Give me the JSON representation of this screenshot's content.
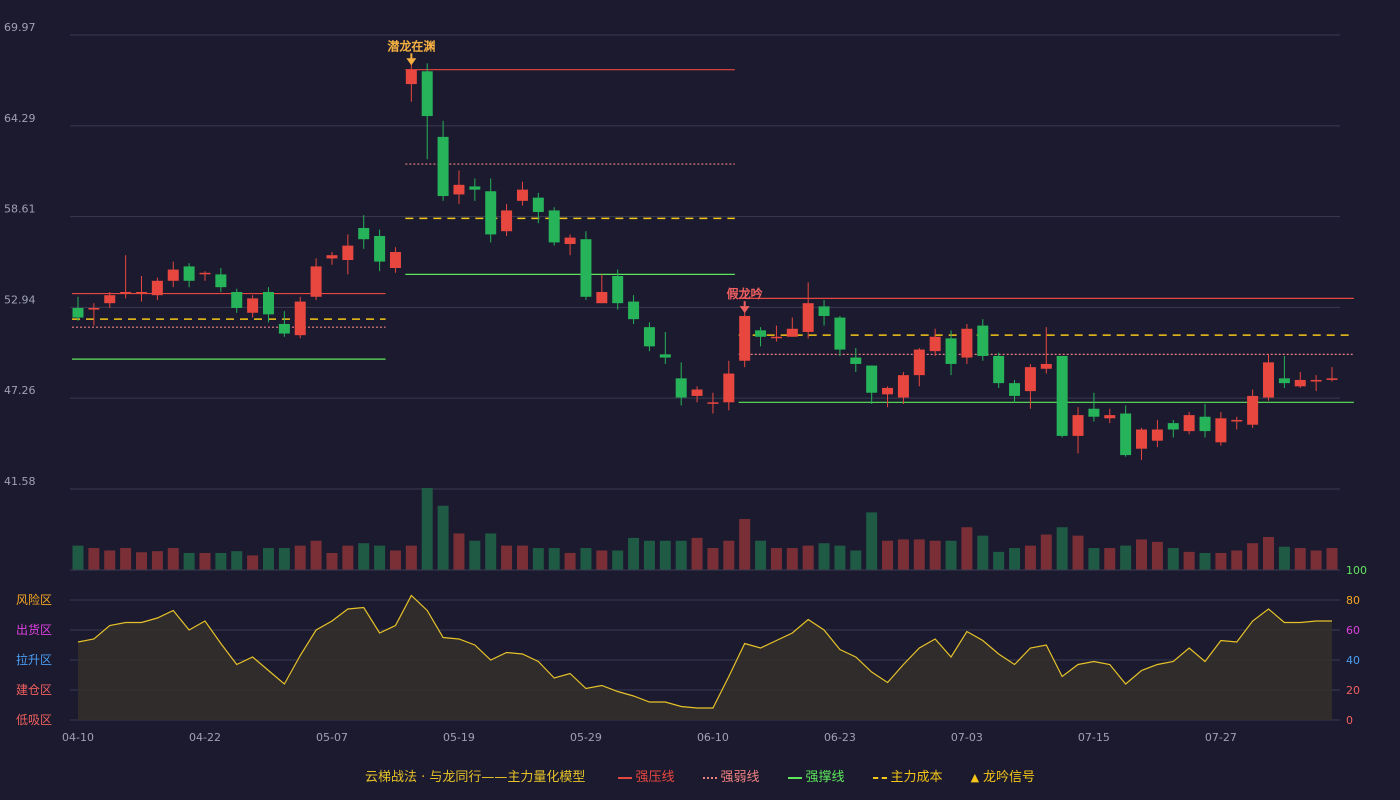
{
  "colors": {
    "background": "#1b1a2e",
    "grid": "#3a3a52",
    "up": "#e8473f",
    "down": "#26b35a",
    "vol_up": "#7a2f36",
    "vol_down": "#1f5a45",
    "resist": "#e8473f",
    "weak": "#f08080",
    "support": "#5ce65c",
    "cost": "#f5c518",
    "signal_up": "#f5b041",
    "signal_down": "#f06060",
    "osc_line": "#e6c229",
    "osc_fill": "#332f2c"
  },
  "chart_data": [
    {
      "type": "candlestick",
      "y_ticks": [
        "69.97",
        "64.29",
        "58.61",
        "52.94",
        "47.26",
        "41.58"
      ],
      "ylim": [
        41.58,
        69.97
      ],
      "x_tick_labels": [
        {
          "i": 0,
          "label": "04-10"
        },
        {
          "i": 8,
          "label": "04-22"
        },
        {
          "i": 16,
          "label": "05-07"
        },
        {
          "i": 24,
          "label": "05-19"
        },
        {
          "i": 32,
          "label": "05-29"
        },
        {
          "i": 40,
          "label": "06-10"
        },
        {
          "i": 48,
          "label": "06-23"
        },
        {
          "i": 56,
          "label": "07-03"
        },
        {
          "i": 64,
          "label": "07-15"
        },
        {
          "i": 72,
          "label": "07-27"
        }
      ],
      "candles": [
        [
          52.9,
          52.3,
          53.6,
          52.1
        ],
        [
          52.8,
          52.9,
          53.2,
          51.8
        ],
        [
          53.2,
          53.7,
          53.9,
          52.9
        ],
        [
          53.8,
          53.9,
          56.2,
          53.5
        ],
        [
          53.9,
          53.9,
          54.9,
          53.3
        ],
        [
          53.7,
          54.6,
          54.8,
          53.4
        ],
        [
          54.6,
          55.3,
          55.8,
          54.2
        ],
        [
          55.5,
          54.6,
          55.7,
          54.2
        ],
        [
          55.1,
          55.1,
          55.2,
          54.6
        ],
        [
          55.0,
          54.2,
          55.4,
          53.9
        ],
        [
          53.9,
          52.9,
          54.1,
          52.6
        ],
        [
          52.6,
          53.5,
          53.7,
          52.3
        ],
        [
          53.9,
          52.5,
          54.2,
          52.0
        ],
        [
          51.9,
          51.3,
          52.7,
          51.1
        ],
        [
          51.2,
          53.3,
          53.6,
          51.0
        ],
        [
          53.6,
          55.5,
          56.0,
          53.4
        ],
        [
          56.0,
          56.2,
          56.4,
          55.6
        ],
        [
          55.9,
          56.8,
          57.5,
          55.0
        ],
        [
          57.9,
          57.2,
          58.7,
          56.6
        ],
        [
          57.4,
          55.8,
          57.8,
          55.2
        ],
        [
          55.4,
          56.4,
          56.7,
          55.1
        ],
        [
          66.9,
          67.8,
          68.2,
          65.8
        ],
        [
          67.7,
          64.9,
          68.2,
          62.2
        ],
        [
          63.6,
          59.9,
          64.6,
          59.6
        ],
        [
          60.0,
          60.6,
          61.5,
          59.4
        ],
        [
          60.5,
          60.3,
          61.0,
          59.6
        ],
        [
          60.2,
          57.5,
          61.0,
          57.0
        ],
        [
          57.7,
          59.0,
          59.4,
          57.4
        ],
        [
          59.6,
          60.3,
          60.8,
          59.3
        ],
        [
          59.8,
          58.9,
          60.1,
          58.2
        ],
        [
          59.0,
          57.0,
          59.2,
          56.8
        ],
        [
          56.9,
          57.3,
          57.5,
          56.2
        ],
        [
          57.2,
          53.6,
          57.7,
          53.4
        ],
        [
          53.2,
          53.9,
          55.0,
          53.2
        ],
        [
          54.9,
          53.2,
          55.3,
          52.8
        ],
        [
          53.3,
          52.2,
          53.7,
          51.9
        ],
        [
          51.7,
          50.5,
          52.0,
          50.2
        ],
        [
          50.0,
          49.8,
          51.4,
          49.4
        ],
        [
          48.5,
          47.3,
          49.5,
          46.8
        ],
        [
          47.4,
          47.8,
          48.0,
          47.0
        ],
        [
          47.0,
          47.0,
          47.6,
          46.3
        ],
        [
          47.0,
          48.8,
          49.6,
          46.5
        ],
        [
          49.6,
          52.4,
          52.7,
          49.2
        ],
        [
          51.5,
          51.1,
          51.7,
          50.5
        ],
        [
          51.1,
          51.1,
          51.8,
          50.8
        ],
        [
          51.1,
          51.6,
          52.3,
          51.1
        ],
        [
          51.4,
          53.2,
          54.5,
          51.0
        ],
        [
          53.0,
          52.4,
          53.4,
          51.8
        ],
        [
          52.3,
          50.3,
          52.4,
          49.9
        ],
        [
          49.8,
          49.4,
          50.4,
          48.9
        ],
        [
          49.3,
          47.6,
          49.3,
          46.9
        ],
        [
          47.5,
          47.9,
          48.0,
          46.7
        ],
        [
          47.3,
          48.7,
          48.9,
          46.9
        ],
        [
          48.7,
          50.3,
          50.4,
          48.0
        ],
        [
          50.2,
          51.1,
          51.6,
          49.9
        ],
        [
          51.0,
          49.4,
          51.5,
          48.7
        ],
        [
          49.8,
          51.6,
          51.9,
          49.4
        ],
        [
          51.8,
          49.9,
          52.2,
          49.6
        ],
        [
          49.9,
          48.2,
          50.1,
          47.9
        ],
        [
          48.2,
          47.4,
          48.4,
          47.0
        ],
        [
          47.7,
          49.2,
          49.4,
          46.6
        ],
        [
          49.1,
          49.4,
          51.7,
          48.8
        ],
        [
          49.9,
          44.9,
          49.9,
          44.8
        ],
        [
          44.9,
          46.2,
          46.7,
          43.8
        ],
        [
          46.6,
          46.1,
          47.6,
          45.8
        ],
        [
          46.0,
          46.2,
          46.6,
          45.7
        ],
        [
          46.3,
          43.7,
          46.8,
          43.6
        ],
        [
          44.1,
          45.3,
          45.4,
          43.4
        ],
        [
          44.6,
          45.3,
          45.9,
          44.2
        ],
        [
          45.7,
          45.3,
          45.9,
          44.8
        ],
        [
          45.2,
          46.2,
          46.4,
          45.0
        ],
        [
          46.1,
          45.2,
          46.9,
          44.8
        ],
        [
          44.5,
          46.0,
          46.4,
          44.3
        ],
        [
          45.8,
          45.9,
          46.1,
          45.3
        ],
        [
          45.6,
          47.4,
          47.8,
          45.4
        ],
        [
          47.3,
          49.5,
          50.0,
          47.1
        ],
        [
          48.5,
          48.2,
          49.9,
          47.9
        ],
        [
          48.0,
          48.4,
          48.9,
          47.9
        ],
        [
          48.3,
          48.4,
          48.7,
          47.7
        ],
        [
          48.4,
          48.5,
          49.2,
          48.3
        ]
      ],
      "volume": [
        1.1,
        0.99,
        0.88,
        0.99,
        0.8,
        0.85,
        0.99,
        0.77,
        0.77,
        0.77,
        0.85,
        0.66,
        0.99,
        0.99,
        1.1,
        1.32,
        0.77,
        1.1,
        1.21,
        1.1,
        0.88,
        1.1,
        3.7,
        2.9,
        1.65,
        1.32,
        1.65,
        1.1,
        1.1,
        0.99,
        0.99,
        0.77,
        0.99,
        0.88,
        0.88,
        1.45,
        1.32,
        1.32,
        1.32,
        1.45,
        0.99,
        1.32,
        2.3,
        1.32,
        0.99,
        0.99,
        1.1,
        1.21,
        1.1,
        0.88,
        2.6,
        1.32,
        1.38,
        1.38,
        1.32,
        1.32,
        1.93,
        1.55,
        0.82,
        0.99,
        1.1,
        1.6,
        1.93,
        1.55,
        0.99,
        0.99,
        1.1,
        1.38,
        1.27,
        0.99,
        0.82,
        0.77,
        0.77,
        0.88,
        1.21,
        1.49,
        1.05,
        0.99,
        0.88,
        0.99
      ],
      "levels": [
        {
          "kind": "resist",
          "from": 0,
          "to": 19,
          "value": 53.8
        },
        {
          "kind": "weak",
          "from": 0,
          "to": 19,
          "value": 51.7
        },
        {
          "kind": "cost",
          "from": 0,
          "to": 19,
          "value": 52.2
        },
        {
          "kind": "support",
          "from": 0,
          "to": 19,
          "value": 49.7
        },
        {
          "kind": "resist",
          "from": 21,
          "to": 41,
          "value": 67.8
        },
        {
          "kind": "weak",
          "from": 21,
          "to": 41,
          "value": 61.9
        },
        {
          "kind": "cost",
          "from": 21,
          "to": 41,
          "value": 58.5
        },
        {
          "kind": "support",
          "from": 21,
          "to": 41,
          "value": 55.0
        },
        {
          "kind": "resist",
          "from": 42,
          "to": 80,
          "value": 53.5
        },
        {
          "kind": "weak",
          "from": 42,
          "to": 80,
          "value": 50.0
        },
        {
          "kind": "cost",
          "from": 42,
          "to": 80,
          "value": 51.2
        },
        {
          "kind": "support",
          "from": 42,
          "to": 80,
          "value": 47.0
        }
      ],
      "signals": [
        {
          "i": 21,
          "text": "潜龙在渊",
          "kind": "up"
        },
        {
          "i": 42,
          "text": "假龙吟",
          "kind": "down"
        }
      ]
    },
    {
      "type": "area",
      "ylim": [
        0,
        100
      ],
      "y_ticks": [
        {
          "v": 100,
          "label": "100",
          "color": "#5ce65c"
        },
        {
          "v": 80,
          "label": "80",
          "color": "#f5a623"
        },
        {
          "v": 60,
          "label": "60",
          "color": "#e040e0"
        },
        {
          "v": 40,
          "label": "40",
          "color": "#4a9ff5"
        },
        {
          "v": 20,
          "label": "20",
          "color": "#f06060"
        },
        {
          "v": 0,
          "label": "0",
          "color": "#f06060"
        }
      ],
      "zones": [
        {
          "v": 80,
          "text": "风险区",
          "color": "#f5a623"
        },
        {
          "v": 60,
          "text": "出货区",
          "color": "#e040e0"
        },
        {
          "v": 40,
          "text": "拉升区",
          "color": "#4a9ff5"
        },
        {
          "v": 20,
          "text": "建仓区",
          "color": "#f06060"
        },
        {
          "v": 0,
          "text": "低吸区",
          "color": "#f06060"
        }
      ],
      "values": [
        52,
        54,
        63,
        65,
        65,
        68,
        73,
        60,
        66,
        51,
        37,
        42,
        33,
        24,
        43,
        60,
        66,
        74,
        75,
        58,
        63,
        83,
        73,
        55,
        54,
        50,
        40,
        45,
        44,
        39,
        28,
        31,
        21,
        23,
        19,
        16,
        12,
        12,
        9,
        8,
        8,
        29,
        51,
        48,
        53,
        58,
        67,
        60,
        47,
        42,
        32,
        25,
        37,
        48,
        54,
        42,
        59,
        53,
        44,
        37,
        48,
        50,
        29,
        37,
        39,
        37,
        24,
        33,
        37,
        39,
        48,
        39,
        53,
        52,
        66,
        74,
        65,
        65,
        66,
        66
      ]
    }
  ],
  "legend": {
    "title": "云梯战法 · 与龙同行——主力量化模型",
    "items": [
      {
        "label": "强压线",
        "kind": "solid",
        "color": "#e8473f"
      },
      {
        "label": "强弱线",
        "kind": "dotted",
        "color": "#f08080"
      },
      {
        "label": "强撑线",
        "kind": "solid",
        "color": "#5ce65c"
      },
      {
        "label": "主力成本",
        "kind": "dashed",
        "color": "#f5c518"
      },
      {
        "label": "龙吟信号",
        "kind": "triangle",
        "color": "#f5c518"
      }
    ]
  }
}
